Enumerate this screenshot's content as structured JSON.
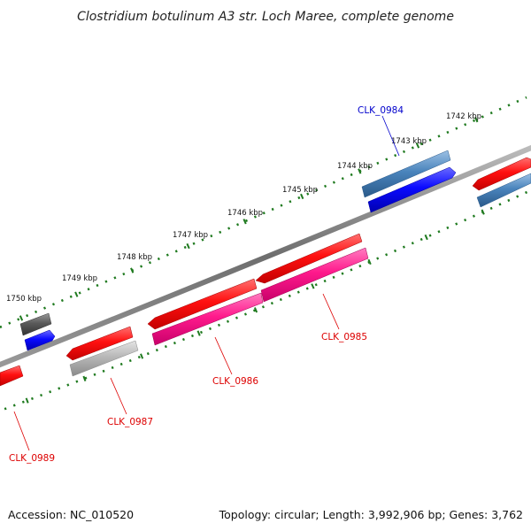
{
  "title": "Clostridium botulinum A3 str. Loch Maree, complete genome",
  "footer": {
    "accession": "Accession: NC_010520",
    "info": "Topology: circular; Length: 3,992,906 bp; Genes: 3,762"
  },
  "colors": {
    "backbone": "#7a7a7a",
    "tick": "#1f7a1f",
    "red": "#ff1010",
    "pink": "#ff1a8c",
    "blue": "#0a0aff",
    "steel": "#4a84bc",
    "grey": "#b8b8b8",
    "darkgrey": "#5a5a5a",
    "label_red": "#dd0000",
    "label_blue": "#0000cc"
  },
  "ticks": [
    {
      "label": "1742 kbp"
    },
    {
      "label": "1743 kbp"
    },
    {
      "label": "1744 kbp"
    },
    {
      "label": "1745 kbp"
    },
    {
      "label": "1746 kbp"
    },
    {
      "label": "1747 kbp"
    },
    {
      "label": "1748 kbp"
    },
    {
      "label": "1749 kbp"
    },
    {
      "label": "1750 kbp"
    }
  ],
  "gene_labels": [
    {
      "text": "CLK_0984",
      "color": "blue"
    },
    {
      "text": "CLK_0985",
      "color": "red"
    },
    {
      "text": "CLK_0986",
      "color": "red"
    },
    {
      "text": "CLK_0987",
      "color": "red"
    },
    {
      "text": "CLK_0989",
      "color": "red"
    }
  ],
  "features": [
    {
      "name": "CLK_0984-gene",
      "color": "steel",
      "lane": "fwd-outer"
    },
    {
      "name": "CLK_0984-cds",
      "color": "blue",
      "lane": "fwd-inner"
    },
    {
      "name": "right-gene",
      "color": "red",
      "lane": "fwd-outer"
    },
    {
      "name": "right-cds",
      "color": "steel",
      "lane": "fwd-inner"
    },
    {
      "name": "CLK_0985-gene",
      "color": "red",
      "lane": "rev-inner"
    },
    {
      "name": "CLK_0985-cds",
      "color": "pink",
      "lane": "rev-outer"
    },
    {
      "name": "CLK_0986-gene",
      "color": "red",
      "lane": "rev-inner"
    },
    {
      "name": "CLK_0986-cds",
      "color": "pink",
      "lane": "rev-outer"
    },
    {
      "name": "CLK_0987-gene",
      "color": "red",
      "lane": "rev-inner"
    },
    {
      "name": "CLK_0987-cds",
      "color": "grey",
      "lane": "rev-outer"
    },
    {
      "name": "CLK_0989-gene",
      "color": "red",
      "lane": "rev-inner"
    },
    {
      "name": "left-gene",
      "color": "darkgrey",
      "lane": "fwd-outer"
    },
    {
      "name": "left-cds",
      "color": "blue",
      "lane": "fwd-inner"
    }
  ]
}
